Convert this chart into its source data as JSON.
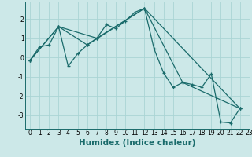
{
  "xlabel": "Humidex (Indice chaleur)",
  "bg_color": "#cce8e8",
  "line_color": "#1a6b6b",
  "marker": "+",
  "series1": [
    [
      0,
      -0.15
    ],
    [
      1,
      0.55
    ],
    [
      2,
      0.65
    ],
    [
      3,
      1.6
    ],
    [
      4,
      -0.45
    ],
    [
      5,
      0.2
    ],
    [
      6,
      0.65
    ],
    [
      7,
      1.0
    ],
    [
      8,
      1.7
    ],
    [
      9,
      1.5
    ],
    [
      10,
      1.9
    ],
    [
      11,
      2.35
    ],
    [
      12,
      2.55
    ],
    [
      13,
      0.45
    ],
    [
      14,
      -0.8
    ],
    [
      15,
      -1.55
    ],
    [
      16,
      -1.3
    ],
    [
      17,
      -1.4
    ],
    [
      18,
      -1.55
    ],
    [
      19,
      -0.85
    ],
    [
      20,
      -3.35
    ],
    [
      21,
      -3.4
    ],
    [
      22,
      -2.65
    ]
  ],
  "series2": [
    [
      0,
      -0.15
    ],
    [
      3,
      1.6
    ],
    [
      6,
      0.65
    ],
    [
      12,
      2.55
    ],
    [
      22,
      -2.65
    ]
  ],
  "series3": [
    [
      0,
      -0.15
    ],
    [
      3,
      1.6
    ],
    [
      7,
      1.0
    ],
    [
      12,
      2.55
    ],
    [
      16,
      -1.3
    ],
    [
      22,
      -2.65
    ]
  ],
  "xlim": [
    -0.5,
    23
  ],
  "ylim": [
    -3.7,
    2.9
  ],
  "xticks": [
    0,
    1,
    2,
    3,
    4,
    5,
    6,
    7,
    8,
    9,
    10,
    11,
    12,
    13,
    14,
    15,
    16,
    17,
    18,
    19,
    20,
    21,
    22,
    23
  ],
  "yticks": [
    -3,
    -2,
    -1,
    0,
    1,
    2
  ],
  "grid_color": "#aad4d4",
  "tick_fontsize": 5.5,
  "label_fontsize": 7.5
}
